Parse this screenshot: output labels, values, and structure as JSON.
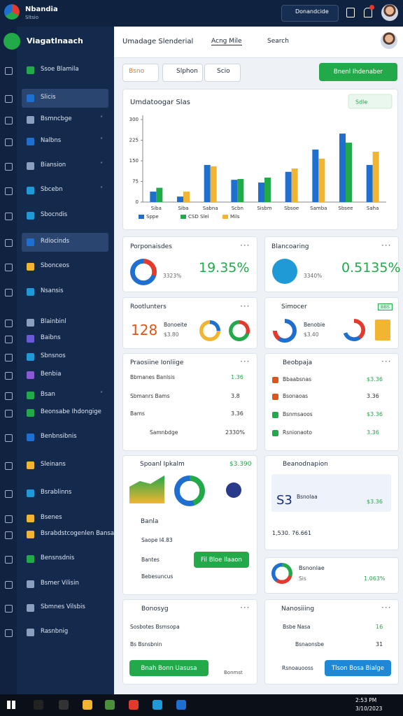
{
  "topbar": {
    "app_name": "Nbandia",
    "app_sub": "Sltsio",
    "account": "Donandcide"
  },
  "sidebar": {
    "brand": "Viagatlnaach",
    "items": [
      "Ssoe Blamila",
      "Slicis",
      "Bsmncbge",
      "Nalbns",
      "Biansion",
      "Sbcebn",
      "Sbocndis",
      "Rdiocinds",
      "Sbonceos",
      "Nsansis",
      "Blainbinl",
      "Baibns",
      "Sbnsnos",
      "Benbia",
      "Bsan",
      "Beonsabe Ihdongige",
      "Benbnsibnis",
      "Sleinans",
      "Bsrablinns",
      "Bsenes",
      "Bsrabdstcogenlen Bansa",
      "Bensnsdnis",
      "Bsmer Vilisin",
      "Sbmnes Vilsbis",
      "Rasnbnig"
    ]
  },
  "header": {
    "title": "Umadage Slenderial",
    "tab": "Acng Mile",
    "search": "Search"
  },
  "toolbar": {
    "filter": "Bsno",
    "export": "Slphon",
    "share": "Scio",
    "primary": "Bnenl Ihdenaber"
  },
  "chart_data": {
    "type": "bar",
    "title": "Umdatoogar Slas",
    "selector": "Sdle",
    "categories": [
      "Siba",
      "Siba",
      "Sabna",
      "Scbn",
      "Sisbm",
      "Sbsoe",
      "Samba",
      "Sbsee",
      "Saha"
    ],
    "series": [
      {
        "name": "Sppe",
        "color": "#1f6fd1",
        "values": [
          38,
          20,
          135,
          81,
          71,
          110,
          191,
          249,
          135
        ]
      },
      {
        "name": "CSD Slel",
        "color": "#22a94a",
        "values": [
          52,
          null,
          null,
          84,
          89,
          null,
          null,
          216,
          null
        ]
      },
      {
        "name": "Mils",
        "color": "#f2b531",
        "values": [
          null,
          38,
          130,
          null,
          null,
          122,
          158,
          null,
          183
        ]
      }
    ],
    "ylim": [
      0,
      300
    ],
    "yticks": [
      0,
      75,
      150,
      225,
      300
    ],
    "grid": false
  },
  "cards": {
    "a": {
      "title": "Porponaisdes",
      "sub": "3323%",
      "big": "19.35%"
    },
    "b": {
      "title": "Blancoaring",
      "sub": "3340%",
      "big": "0.5135%"
    },
    "c": {
      "title": "Rootlunters",
      "big": "128",
      "label": "Bonoeite",
      "sub": "$3.80"
    },
    "d": {
      "title": "Simocer",
      "badge": "BBS",
      "label": "Benobie",
      "sub": "$3.40"
    },
    "e": {
      "title": "Praosiine Ionliige",
      "rows": [
        [
          "Bbmanes Banlsis",
          "1.36"
        ],
        [
          "Sbmanrs Bams",
          "3.8"
        ],
        [
          "Bams",
          "3.36"
        ],
        [
          "Samnbdge",
          "2330%"
        ]
      ]
    },
    "f": {
      "title": "Beobpaja",
      "rows": [
        [
          "Bbaabsnas",
          "$3.36"
        ],
        [
          "Bsonaoas",
          "3.36"
        ],
        [
          "Bsnmsaoos",
          "$3.36"
        ],
        [
          "Rsnionaoto",
          "3.36"
        ]
      ]
    },
    "g": {
      "title": "Spoanl Ipkalm",
      "value": "$3.390",
      "sub": "Banla",
      "r1": "Saope I4.83",
      "r2": "Bantes",
      "button": "Fil Bloe Ilaaon",
      "r3": "Bebesuncus"
    },
    "h": {
      "title": "Beanodnapion",
      "big": "S3",
      "label": "Bsnolaa",
      "value": "$3.36",
      "foot": "1,530. 76.661"
    },
    "i": {
      "title": "Bsnonlae",
      "sub": "Sis",
      "value": "1.063%"
    },
    "j": {
      "title": "Bonosyg",
      "r1": "Sosbotes Bsmsopa",
      "r2": "Bs Bsnsbnin",
      "button": "Bnah Bonn Uasusa",
      "link": "Bonmst"
    },
    "k": {
      "title": "Nanosiiing",
      "r1": "Bsbe Nasa",
      "v1": "16",
      "r2": "Bsnaonsbe",
      "v2": "31",
      "r3": "Rsnoauooss",
      "button": "Tlson Bosa Bialge"
    }
  },
  "taskbar": {
    "time": "2:53 PM",
    "date": "3/10/2023"
  }
}
